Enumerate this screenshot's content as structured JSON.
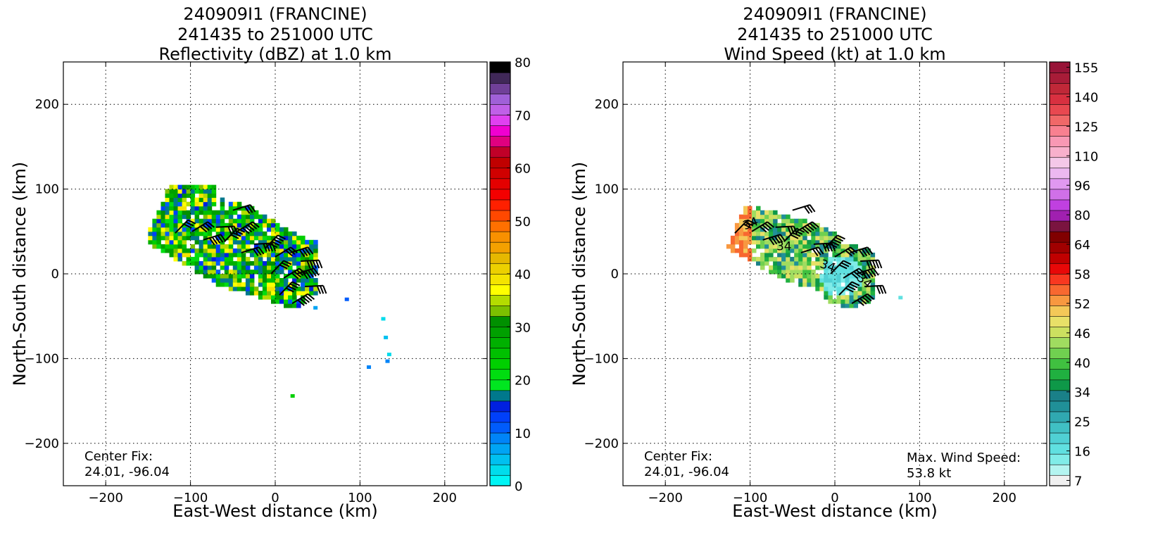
{
  "panels": [
    {
      "title": [
        "240909I1 (FRANCINE)",
        "241435 to 251000 UTC",
        "Reflectivity (dBZ) at 1.0 km"
      ],
      "xlabel": "East-West distance (km)",
      "ylabel": "North-South distance (km)",
      "x_ticks": [
        -200,
        -100,
        0,
        100,
        200
      ],
      "y_ticks": [
        200,
        100,
        0,
        -100,
        -200
      ],
      "xlim": [
        -250,
        250
      ],
      "ylim": [
        -250,
        250
      ],
      "grid": true,
      "annotation_left": [
        "Center Fix:",
        "24.01, -96.04"
      ],
      "annotation_right": [],
      "colorbar": {
        "tick_labels": [
          "0",
          "10",
          "20",
          "30",
          "40",
          "50",
          "60",
          "70",
          "80"
        ],
        "colors": [
          "#00f5f5",
          "#00dcec",
          "#00c0f0",
          "#00a4f4",
          "#0084f8",
          "#005cfc",
          "#0040fa",
          "#0020e0",
          "#00788c",
          "#00e620",
          "#00dd10",
          "#00cf00",
          "#00c000",
          "#00b000",
          "#00a000",
          "#009000",
          "#7cc000",
          "#b4dc00",
          "#ffff00",
          "#f4e400",
          "#ecd000",
          "#e6b800",
          "#f4a000",
          "#f89000",
          "#ff7000",
          "#ff4800",
          "#ff2000",
          "#f40000",
          "#e40000",
          "#d00000",
          "#c00000",
          "#c00028",
          "#e00080",
          "#f000d0",
          "#e040f0",
          "#c060e8",
          "#a060d8",
          "#704098",
          "#402858",
          "#000000"
        ],
        "range": [
          0,
          80
        ]
      },
      "chart_data": {
        "type": "heatmap",
        "variable": "Reflectivity (dBZ)",
        "center_fix": [
          24.01,
          -96.04
        ],
        "echo_region": {
          "x_range_km": [
            -150,
            47
          ],
          "y_range_km": [
            -45,
            105
          ]
        },
        "scattered_echoes_km": [
          [
            82,
            -32
          ],
          [
            125,
            -55
          ],
          [
            128,
            -77
          ],
          [
            132,
            -97
          ],
          [
            108,
            -112
          ],
          [
            130,
            -105
          ],
          [
            18,
            -146
          ],
          [
            45,
            -42
          ]
        ]
      }
    },
    {
      "title": [
        "240909I1 (FRANCINE)",
        "241435 to 251000 UTC",
        "Wind Speed (kt) at 1.0 km"
      ],
      "xlabel": "East-West distance (km)",
      "ylabel": "North-South distance (km)",
      "x_ticks": [
        -200,
        -100,
        0,
        100,
        200
      ],
      "y_ticks": [
        200,
        100,
        0,
        -100,
        -200
      ],
      "xlim": [
        -250,
        250
      ],
      "ylim": [
        -250,
        250
      ],
      "grid": true,
      "annotation_left": [
        "Center Fix:",
        "24.01, -96.04"
      ],
      "annotation_right": [
        "Max. Wind Speed:",
        "53.8 kt"
      ],
      "colorbar": {
        "tick_labels": [
          "7",
          "16",
          "25",
          "34",
          "40",
          "46",
          "52",
          "58",
          "64",
          "80",
          "96",
          "110",
          "125",
          "140",
          "155"
        ],
        "colors": [
          "#f0f0f0",
          "#b4f4f0",
          "#80ece8",
          "#60e0e0",
          "#50d0d4",
          "#40c0c4",
          "#30a8b0",
          "#209098",
          "#1a8088",
          "#0e9848",
          "#20b040",
          "#40c040",
          "#70d050",
          "#a0dc60",
          "#cce060",
          "#e8e068",
          "#f4c858",
          "#f89840",
          "#f86830",
          "#f83820",
          "#e80808",
          "#c00000",
          "#a00000",
          "#800000",
          "#7a1440",
          "#a020b0",
          "#c040e0",
          "#d070e8",
          "#e098f0",
          "#ecb8f0",
          "#f4c8e8",
          "#f8b0cc",
          "#f898b4",
          "#f88090",
          "#f06868",
          "#e84850",
          "#d83040",
          "#c02838",
          "#a81c38",
          "#981438"
        ],
        "range": [
          0,
          160
        ]
      },
      "chart_data": {
        "type": "heatmap",
        "variable": "Wind Speed (kt)",
        "center_fix": [
          24.01,
          -96.04
        ],
        "max_wind_speed_kt": 53.8,
        "wind_region": {
          "x_range_km": [
            -128,
            45
          ],
          "y_range_km": [
            -45,
            82
          ]
        },
        "contour_labels": [
          "34",
          "34",
          "34",
          "34"
        ],
        "scattered_echoes_km": [
          [
            75,
            -30
          ]
        ]
      }
    }
  ]
}
